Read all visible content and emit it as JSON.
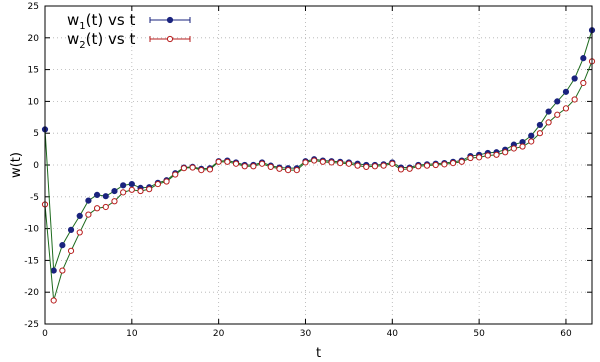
{
  "chart_data": {
    "type": "line",
    "title": "",
    "xlabel": "t",
    "ylabel": "w(t)",
    "xlim": [
      0,
      63
    ],
    "ylim": [
      -25,
      25
    ],
    "x_ticks": [
      0,
      10,
      20,
      30,
      40,
      50,
      60
    ],
    "y_ticks": [
      -25,
      -20,
      -15,
      -10,
      -5,
      0,
      5,
      10,
      15,
      20,
      25
    ],
    "grid": true,
    "legend_position": "top-left",
    "x": [
      0,
      1,
      2,
      3,
      4,
      5,
      6,
      7,
      8,
      9,
      10,
      11,
      12,
      13,
      14,
      15,
      16,
      17,
      18,
      19,
      20,
      21,
      22,
      23,
      24,
      25,
      26,
      27,
      28,
      29,
      30,
      31,
      32,
      33,
      34,
      35,
      36,
      37,
      38,
      39,
      40,
      41,
      42,
      43,
      44,
      45,
      46,
      47,
      48,
      49,
      50,
      51,
      52,
      53,
      54,
      55,
      56,
      57,
      58,
      59,
      60,
      61,
      62,
      63
    ],
    "series": [
      {
        "name_main": "w",
        "name_sub": "1",
        "name_rest": "(t) vs t",
        "color": "#1a237e",
        "marker_fill": "#1a237e",
        "line_color": "#1e6b1e",
        "values": [
          5.6,
          -16.6,
          -12.6,
          -10.2,
          -8.0,
          -5.6,
          -4.7,
          -4.9,
          -4.1,
          -3.2,
          -3.0,
          -3.6,
          -3.5,
          -2.8,
          -2.4,
          -1.3,
          -0.4,
          -0.3,
          -0.6,
          -0.5,
          0.6,
          0.7,
          0.4,
          0.0,
          0.0,
          0.4,
          -0.1,
          -0.4,
          -0.5,
          -0.5,
          0.6,
          0.9,
          0.7,
          0.6,
          0.5,
          0.4,
          0.2,
          0.0,
          0.0,
          0.1,
          0.4,
          -0.4,
          -0.4,
          0.0,
          0.1,
          0.2,
          0.3,
          0.5,
          0.7,
          1.4,
          1.6,
          1.9,
          2.0,
          2.4,
          3.2,
          3.6,
          4.6,
          6.3,
          8.4,
          10.0,
          11.5,
          13.6,
          16.8,
          21.2
        ]
      },
      {
        "name_main": "w",
        "name_sub": "2",
        "name_rest": "(t) vs t",
        "color": "#b71c1c",
        "marker_fill": "#ffffff",
        "line_color": "#1e6b1e",
        "values": [
          -6.2,
          -21.3,
          -16.6,
          -13.5,
          -10.6,
          -7.8,
          -6.8,
          -6.6,
          -5.7,
          -4.3,
          -3.9,
          -4.1,
          -3.8,
          -3.0,
          -2.6,
          -1.5,
          -0.5,
          -0.4,
          -0.8,
          -0.7,
          0.5,
          0.5,
          0.2,
          -0.2,
          -0.2,
          0.2,
          -0.3,
          -0.6,
          -0.8,
          -0.8,
          0.4,
          0.7,
          0.5,
          0.4,
          0.3,
          0.2,
          -0.1,
          -0.3,
          -0.2,
          -0.1,
          0.2,
          -0.7,
          -0.6,
          -0.2,
          -0.1,
          0.0,
          0.1,
          0.3,
          0.5,
          1.1,
          1.2,
          1.5,
          1.6,
          2.0,
          2.6,
          2.9,
          3.7,
          5.0,
          6.7,
          7.9,
          8.9,
          10.3,
          12.9,
          16.3
        ]
      }
    ]
  }
}
